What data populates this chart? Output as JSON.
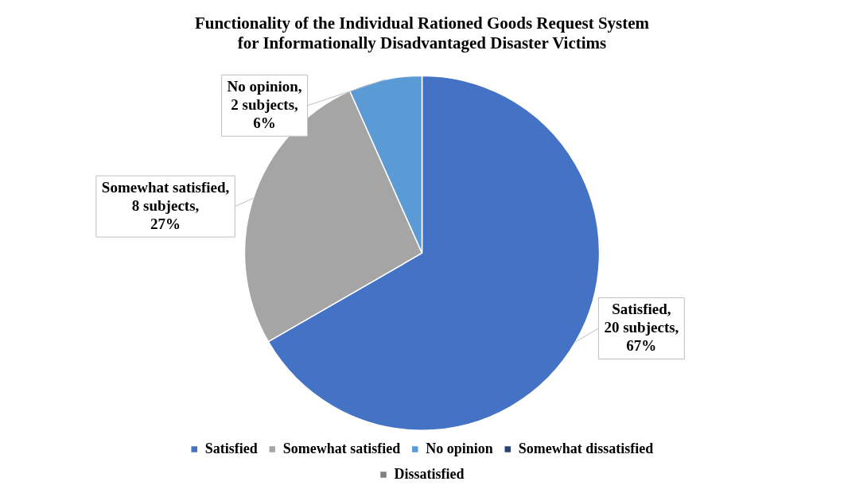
{
  "chart_data": {
    "type": "pie",
    "title": "Functionality of the Individual Rationed Goods Request System\nfor Informationally Disadvantaged Disaster Victims",
    "categories": [
      "Satisfied",
      "Somewhat satisfied",
      "No opinion",
      "Somewhat dissatisfied",
      "Dissatisfied"
    ],
    "values": [
      20,
      8,
      2,
      0,
      0
    ],
    "colors": [
      "#4472c4",
      "#a5a5a5",
      "#5b9bd5",
      "#264478",
      "#7f7f7f"
    ],
    "value_labels": [
      "Satisfied,\n20 subjects,\n67%",
      "Somewhat satisfied,\n8 subjects,\n27%",
      "No opinion,\n2 subjects,\n6%",
      null,
      null
    ],
    "legend": "bottom"
  }
}
